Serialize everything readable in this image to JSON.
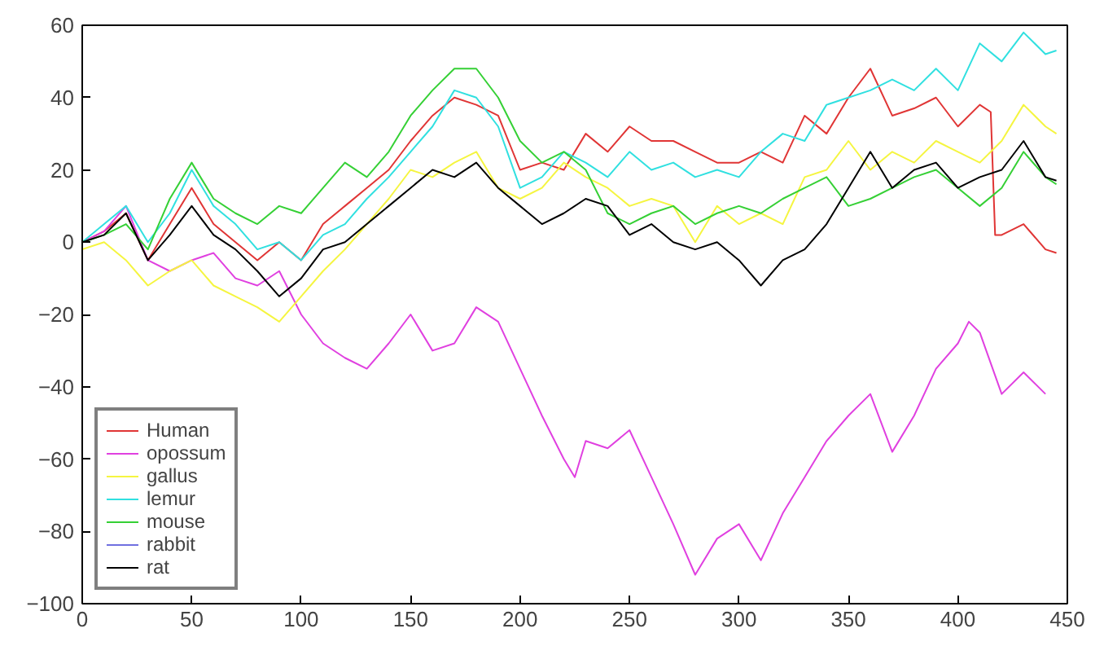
{
  "chart_data": {
    "type": "line",
    "xlim": [
      0,
      450
    ],
    "ylim": [
      -100,
      60
    ],
    "xticks": [
      0,
      50,
      100,
      150,
      200,
      250,
      300,
      350,
      400,
      450
    ],
    "yticks": [
      -100,
      -80,
      -60,
      -40,
      -20,
      0,
      20,
      40,
      60
    ],
    "grid": false,
    "legend": "bottom left",
    "line_style": "solid",
    "marker": "none",
    "series": [
      {
        "name": "Human",
        "color": "#e03535",
        "x": [
          0,
          10,
          20,
          30,
          40,
          50,
          60,
          70,
          80,
          90,
          100,
          110,
          120,
          130,
          140,
          150,
          160,
          170,
          180,
          190,
          200,
          210,
          220,
          230,
          240,
          250,
          260,
          270,
          280,
          290,
          300,
          310,
          320,
          330,
          340,
          350,
          360,
          370,
          380,
          390,
          400,
          410,
          415,
          417,
          420,
          430,
          440,
          445
        ],
        "values": [
          0,
          3,
          8,
          -5,
          5,
          15,
          5,
          0,
          -5,
          0,
          -5,
          5,
          10,
          15,
          20,
          28,
          35,
          40,
          38,
          35,
          20,
          22,
          20,
          30,
          25,
          32,
          28,
          28,
          25,
          22,
          22,
          25,
          22,
          35,
          30,
          40,
          48,
          35,
          37,
          40,
          32,
          38,
          36,
          2,
          2,
          5,
          -2,
          -3
        ]
      },
      {
        "name": "opossum",
        "color": "#e040e0",
        "x": [
          0,
          10,
          20,
          30,
          40,
          50,
          60,
          70,
          80,
          90,
          100,
          110,
          120,
          130,
          140,
          150,
          160,
          170,
          180,
          190,
          200,
          210,
          220,
          225,
          230,
          240,
          250,
          260,
          270,
          280,
          290,
          300,
          310,
          320,
          330,
          340,
          350,
          360,
          370,
          380,
          390,
          400,
          405,
          410,
          420,
          430,
          440
        ],
        "values": [
          0,
          3,
          10,
          -5,
          -8,
          -5,
          -3,
          -10,
          -12,
          -8,
          -20,
          -28,
          -32,
          -35,
          -28,
          -20,
          -30,
          -28,
          -18,
          -22,
          -35,
          -48,
          -60,
          -65,
          -55,
          -57,
          -52,
          -65,
          -78,
          -92,
          -82,
          -78,
          -88,
          -75,
          -65,
          -55,
          -48,
          -42,
          -58,
          -48,
          -35,
          -28,
          -22,
          -25,
          -42,
          -36,
          -42
        ]
      },
      {
        "name": "gallus",
        "color": "#f5f540",
        "x": [
          0,
          10,
          20,
          30,
          40,
          50,
          60,
          70,
          80,
          90,
          100,
          110,
          120,
          130,
          140,
          150,
          160,
          170,
          180,
          190,
          200,
          210,
          220,
          230,
          240,
          250,
          260,
          270,
          280,
          290,
          300,
          310,
          320,
          330,
          340,
          350,
          360,
          370,
          380,
          390,
          400,
          410,
          420,
          430,
          440,
          445
        ],
        "values": [
          -2,
          0,
          -5,
          -12,
          -8,
          -5,
          -12,
          -15,
          -18,
          -22,
          -15,
          -8,
          -2,
          5,
          12,
          20,
          18,
          22,
          25,
          15,
          12,
          15,
          22,
          18,
          15,
          10,
          12,
          10,
          0,
          10,
          5,
          8,
          5,
          18,
          20,
          28,
          20,
          25,
          22,
          28,
          25,
          22,
          28,
          38,
          32,
          30
        ]
      },
      {
        "name": "lemur",
        "color": "#30e0e0",
        "x": [
          0,
          10,
          20,
          30,
          40,
          50,
          60,
          70,
          80,
          90,
          100,
          110,
          120,
          130,
          140,
          150,
          160,
          170,
          180,
          190,
          200,
          210,
          220,
          230,
          240,
          250,
          260,
          270,
          280,
          290,
          300,
          310,
          320,
          330,
          340,
          350,
          360,
          370,
          380,
          390,
          400,
          410,
          420,
          430,
          440,
          445
        ],
        "values": [
          0,
          5,
          10,
          0,
          8,
          20,
          10,
          5,
          -2,
          0,
          -5,
          2,
          5,
          12,
          18,
          25,
          32,
          42,
          40,
          32,
          15,
          18,
          25,
          22,
          18,
          25,
          20,
          22,
          18,
          20,
          18,
          25,
          30,
          28,
          38,
          40,
          42,
          45,
          42,
          48,
          42,
          55,
          50,
          58,
          52,
          53
        ]
      },
      {
        "name": "mouse",
        "color": "#35d035",
        "x": [
          0,
          10,
          20,
          30,
          40,
          50,
          60,
          70,
          80,
          90,
          100,
          110,
          120,
          130,
          140,
          150,
          160,
          170,
          180,
          190,
          200,
          210,
          220,
          230,
          240,
          250,
          260,
          270,
          280,
          290,
          300,
          310,
          320,
          330,
          340,
          350,
          360,
          370,
          380,
          390,
          400,
          410,
          420,
          430,
          440,
          445
        ],
        "values": [
          0,
          2,
          5,
          -2,
          12,
          22,
          12,
          8,
          5,
          10,
          8,
          15,
          22,
          18,
          25,
          35,
          42,
          48,
          48,
          40,
          28,
          22,
          25,
          20,
          8,
          5,
          8,
          10,
          5,
          8,
          10,
          8,
          12,
          15,
          18,
          10,
          12,
          15,
          18,
          20,
          15,
          10,
          15,
          25,
          18,
          16
        ]
      },
      {
        "name": "rabbit",
        "color": "#7070e0"
      },
      {
        "name": "rat",
        "color": "#000000",
        "x": [
          0,
          10,
          20,
          30,
          40,
          50,
          60,
          70,
          80,
          90,
          100,
          110,
          120,
          130,
          140,
          150,
          160,
          170,
          180,
          190,
          200,
          210,
          220,
          230,
          240,
          250,
          260,
          270,
          280,
          290,
          300,
          310,
          320,
          330,
          340,
          350,
          360,
          370,
          380,
          390,
          400,
          410,
          420,
          430,
          440,
          445
        ],
        "values": [
          0,
          2,
          8,
          -5,
          2,
          10,
          2,
          -2,
          -8,
          -15,
          -10,
          -2,
          0,
          5,
          10,
          15,
          20,
          18,
          22,
          15,
          10,
          5,
          8,
          12,
          10,
          2,
          5,
          0,
          -2,
          0,
          -5,
          -12,
          -5,
          -2,
          5,
          15,
          25,
          15,
          20,
          22,
          15,
          18,
          20,
          28,
          18,
          17
        ]
      }
    ]
  }
}
